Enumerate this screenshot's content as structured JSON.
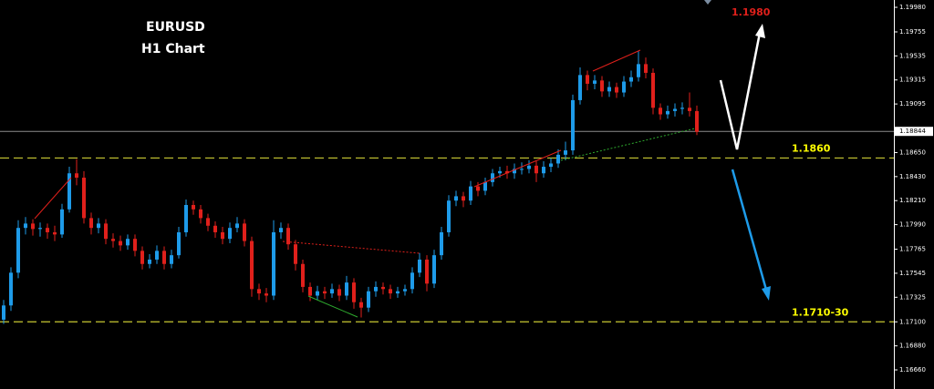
{
  "chart_data": {
    "type": "candlestick",
    "title": "EURUSD",
    "subtitle": "H1 Chart",
    "annotations": [
      "1.1980"
    ],
    "up_color": "#1e9be9",
    "down_color": "#e0201b",
    "open": [
      1.1712,
      1.1725,
      1.1755,
      1.1796,
      1.18,
      1.1795,
      1.1796,
      1.1792,
      1.179,
      1.1813,
      1.1846,
      1.1842,
      1.1805,
      1.1796,
      1.18,
      1.1786,
      1.1784,
      1.178,
      1.1786,
      1.1775,
      1.1763,
      1.1767,
      1.1775,
      1.1763,
      1.1771,
      1.1792,
      1.1817,
      1.1813,
      1.1805,
      1.1798,
      1.1792,
      1.1786,
      1.1796,
      1.18,
      1.1784,
      1.174,
      1.1736,
      1.1734,
      1.1792,
      1.1796,
      1.1781,
      1.1763,
      1.1742,
      1.1734,
      1.1738,
      1.1736,
      1.174,
      1.1734,
      1.1746,
      1.1728,
      1.1723,
      1.1738,
      1.1742,
      1.174,
      1.1736,
      1.1738,
      1.174,
      1.1755,
      1.1767,
      1.1745,
      1.1771,
      1.1792,
      1.1821,
      1.1825,
      1.1821,
      1.1834,
      1.183,
      1.1838,
      1.1846,
      1.1848,
      1.1846,
      1.185,
      1.185,
      1.1853,
      1.1846,
      1.1852,
      1.1855,
      1.1863,
      1.1867,
      1.1913,
      1.1936,
      1.1928,
      1.1931,
      1.1921,
      1.1925,
      1.192,
      1.193,
      1.1934,
      1.1946,
      1.1938,
      1.1906,
      1.19,
      1.1903,
      1.1905,
      1.1906,
      1.1903
    ],
    "high": [
      1.173,
      1.176,
      1.1803,
      1.1806,
      1.1804,
      1.1801,
      1.18,
      1.1798,
      1.1818,
      1.1852,
      1.1859,
      1.1848,
      1.181,
      1.1805,
      1.1804,
      1.1791,
      1.1789,
      1.179,
      1.179,
      1.1779,
      1.1772,
      1.178,
      1.1779,
      1.1776,
      1.1797,
      1.1822,
      1.1821,
      1.1817,
      1.1809,
      1.1802,
      1.1797,
      1.1801,
      1.1806,
      1.1804,
      1.1788,
      1.1745,
      1.1741,
      1.1803,
      1.1801,
      1.18,
      1.1785,
      1.1767,
      1.1746,
      1.1743,
      1.1742,
      1.1745,
      1.1744,
      1.1752,
      1.175,
      1.1732,
      1.1742,
      1.1747,
      1.1746,
      1.1744,
      1.1742,
      1.1744,
      1.176,
      1.1773,
      1.1771,
      1.1776,
      1.1797,
      1.1826,
      1.183,
      1.1829,
      1.1839,
      1.1838,
      1.1842,
      1.185,
      1.1852,
      1.1853,
      1.1855,
      1.1856,
      1.1858,
      1.1857,
      1.1857,
      1.186,
      1.1868,
      1.1875,
      1.1918,
      1.1943,
      1.194,
      1.1936,
      1.1935,
      1.193,
      1.1929,
      1.1935,
      1.194,
      1.1958,
      1.1952,
      1.1942,
      1.191,
      1.1908,
      1.191,
      1.1911,
      1.192,
      1.1908
    ],
    "low": [
      1.1708,
      1.172,
      1.175,
      1.179,
      1.1789,
      1.1788,
      1.1786,
      1.1784,
      1.1787,
      1.181,
      1.1835,
      1.18,
      1.179,
      1.1791,
      1.1781,
      1.1778,
      1.1775,
      1.1776,
      1.177,
      1.1758,
      1.1759,
      1.1763,
      1.1758,
      1.1759,
      1.1768,
      1.1788,
      1.1808,
      1.18,
      1.1793,
      1.1787,
      1.1781,
      1.1782,
      1.1792,
      1.1779,
      1.1733,
      1.173,
      1.1728,
      1.173,
      1.1786,
      1.1776,
      1.1757,
      1.1737,
      1.1729,
      1.173,
      1.1731,
      1.1732,
      1.1729,
      1.173,
      1.1722,
      1.1714,
      1.1719,
      1.1733,
      1.1735,
      1.1731,
      1.1732,
      1.1734,
      1.1736,
      1.1751,
      1.1738,
      1.1741,
      1.1767,
      1.1788,
      1.1816,
      1.1815,
      1.1817,
      1.1825,
      1.1826,
      1.1834,
      1.1842,
      1.1841,
      1.1841,
      1.1845,
      1.1846,
      1.1838,
      1.1842,
      1.1847,
      1.1851,
      1.1858,
      1.1863,
      1.1909,
      1.1922,
      1.1923,
      1.1916,
      1.1916,
      1.1915,
      1.1916,
      1.1925,
      1.193,
      1.1933,
      1.19,
      1.1895,
      1.1896,
      1.1898,
      1.19,
      1.1898,
      1.1881
    ],
    "close": [
      1.1725,
      1.1755,
      1.1796,
      1.18,
      1.1795,
      1.1796,
      1.1792,
      1.179,
      1.1813,
      1.1846,
      1.1842,
      1.1805,
      1.1796,
      1.18,
      1.1786,
      1.1784,
      1.178,
      1.1786,
      1.1775,
      1.1763,
      1.1767,
      1.1775,
      1.1763,
      1.1771,
      1.1792,
      1.1817,
      1.1813,
      1.1805,
      1.1798,
      1.1792,
      1.1786,
      1.1796,
      1.18,
      1.1784,
      1.174,
      1.1736,
      1.1734,
      1.1792,
      1.1796,
      1.1781,
      1.1763,
      1.1742,
      1.1734,
      1.1738,
      1.1736,
      1.174,
      1.1734,
      1.1746,
      1.1728,
      1.1723,
      1.1738,
      1.1742,
      1.174,
      1.1736,
      1.1738,
      1.174,
      1.1755,
      1.1767,
      1.1745,
      1.1771,
      1.1792,
      1.1821,
      1.1825,
      1.1821,
      1.1834,
      1.183,
      1.1838,
      1.1846,
      1.1848,
      1.1846,
      1.185,
      1.185,
      1.1853,
      1.1846,
      1.1852,
      1.1855,
      1.1863,
      1.1867,
      1.1913,
      1.1936,
      1.1928,
      1.1931,
      1.1921,
      1.1925,
      1.192,
      1.193,
      1.1934,
      1.1946,
      1.1938,
      1.1906,
      1.19,
      1.1903,
      1.1905,
      1.1906,
      1.1903,
      1.1884
    ],
    "ylim": [
      1.16485,
      1.20047
    ],
    "yticks": [
      {
        "value": 1.1998,
        "label": "1.19980"
      },
      1.19755,
      1.19535,
      1.19315,
      1.19095,
      {
        "value": 1.1865,
        "label": "1.18650"
      },
      {
        "value": 1.1843,
        "label": "1.18430"
      },
      {
        "value": 1.1821,
        "label": "1.18210"
      },
      {
        "value": 1.1799,
        "label": "1.17990"
      },
      1.17765,
      1.17545,
      1.17325,
      {
        "value": 1.171,
        "label": "1.17100"
      },
      {
        "value": 1.1688,
        "label": "1.16880"
      },
      {
        "value": 1.1666,
        "label": "1.16660"
      }
    ],
    "current_price": {
      "value": 1.18844,
      "label": "1.18844"
    },
    "levels": [
      {
        "value": 1.186,
        "label": "1.1860"
      },
      {
        "value": 1.171,
        "label": "1.1710-30"
      }
    ],
    "level_color": "#c8c832"
  }
}
